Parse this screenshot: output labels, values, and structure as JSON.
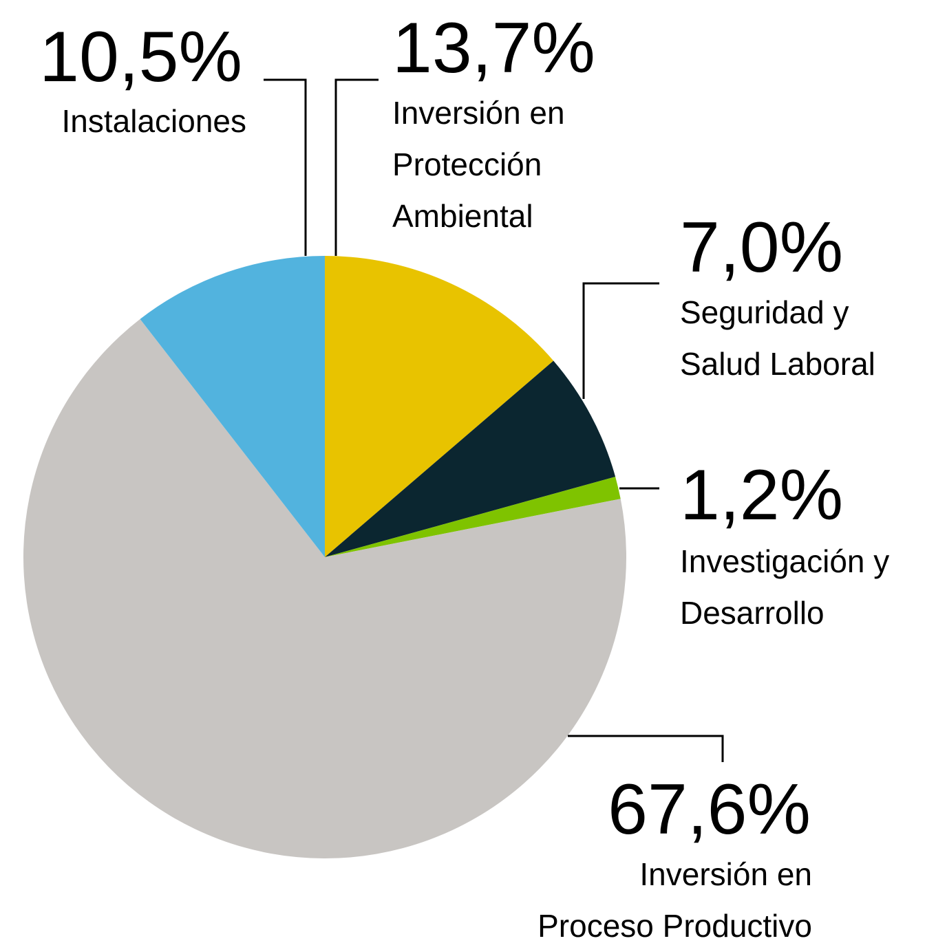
{
  "chart_data": {
    "type": "pie",
    "categories": [
      [
        "Inversión en",
        "Protección",
        "Ambiental"
      ],
      [
        "Seguridad y",
        "Salud Laboral"
      ],
      [
        "Investigación y",
        "Desarrollo"
      ],
      [
        "Inversión en",
        "Proceso Productivo"
      ],
      [
        "Instalaciones"
      ]
    ],
    "values": [
      13.7,
      7.0,
      1.2,
      67.6,
      10.5
    ],
    "value_labels": [
      "13,7%",
      "7,0%",
      "1,2%",
      "67,6%",
      "10,5%"
    ],
    "colors": [
      "#e8c300",
      "#0b2630",
      "#7fc300",
      "#c8c5c2",
      "#52b3de"
    ]
  }
}
